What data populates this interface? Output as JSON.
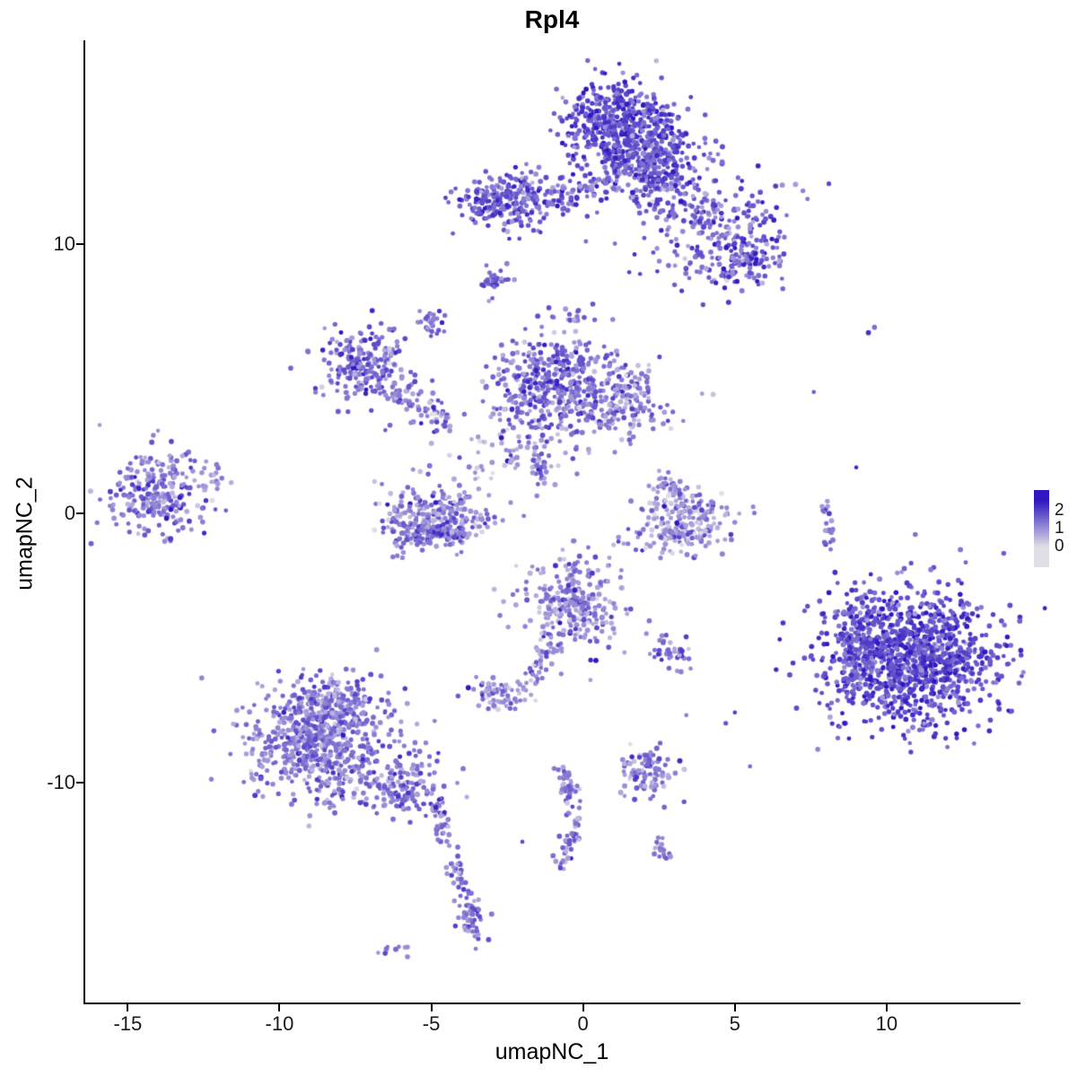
{
  "chart_data": {
    "type": "scatter",
    "title": "Rpl4",
    "xlabel": "umapNC_1",
    "ylabel": "umapNC_2",
    "x_range": [
      -16.4,
      14.35
    ],
    "y_range": [
      -18.2,
      17.55
    ],
    "x_ticks": [
      "-15",
      "-10",
      "-5",
      "0",
      "5",
      "10"
    ],
    "x_tick_values": [
      -15,
      -10,
      -5,
      0,
      5,
      10
    ],
    "y_ticks": [
      "10",
      "0",
      "-10"
    ],
    "y_tick_values": [
      10,
      0,
      -10
    ],
    "grid": false,
    "legend_position": "right",
    "legend_tick_labels": [
      "2",
      "1",
      "0"
    ],
    "legend_tick_values": [
      2,
      1,
      0
    ],
    "color_low": "#E0DFE6",
    "color_high": "#2F17C1",
    "expr_max": 2.5,
    "point_radius_px": 2.3,
    "clusters": [
      {
        "name": "top-main-upper",
        "shape": "blob",
        "n": 480,
        "cx": 1.2,
        "cy": 14.5,
        "sx": 0.85,
        "sy": 0.75,
        "e": 1.8,
        "esd": 0.45
      },
      {
        "name": "top-main-lower",
        "shape": "blob",
        "n": 330,
        "cx": 2.2,
        "cy": 13.1,
        "sx": 0.95,
        "sy": 0.8,
        "e": 1.75,
        "esd": 0.45
      },
      {
        "name": "top-right-arm",
        "shape": "blob",
        "n": 230,
        "cx": 4.2,
        "cy": 10.8,
        "sx": 1.15,
        "sy": 1.1,
        "e": 1.55,
        "esd": 0.5
      },
      {
        "name": "top-right-tip",
        "shape": "blob",
        "n": 130,
        "cx": 5.3,
        "cy": 9.4,
        "sx": 0.6,
        "sy": 0.55,
        "e": 1.6,
        "esd": 0.5
      },
      {
        "name": "top-left-cluster",
        "shape": "blob",
        "n": 230,
        "cx": -2.5,
        "cy": 11.6,
        "sx": 0.75,
        "sy": 0.55,
        "e": 1.65,
        "esd": 0.5
      },
      {
        "name": "top-bridge",
        "shape": "line",
        "n": 80,
        "x1": -1.6,
        "y1": 11.5,
        "x2": 0.9,
        "y2": 12.1,
        "jitter": 0.3,
        "e": 1.5,
        "esd": 0.5
      },
      {
        "name": "small-clump-a",
        "shape": "blob",
        "n": 26,
        "cx": -3.0,
        "cy": 8.6,
        "sx": 0.28,
        "sy": 0.22,
        "e": 1.5,
        "esd": 0.4
      },
      {
        "name": "small-clump-b",
        "shape": "blob",
        "n": 30,
        "cx": -5.0,
        "cy": 7.1,
        "sx": 0.3,
        "sy": 0.3,
        "e": 1.4,
        "esd": 0.4
      },
      {
        "name": "mid-main",
        "shape": "blob",
        "n": 460,
        "cx": -0.9,
        "cy": 4.6,
        "sx": 1.05,
        "sy": 1.0,
        "e": 1.45,
        "esd": 0.5
      },
      {
        "name": "mid-right",
        "shape": "blob",
        "n": 150,
        "cx": 1.4,
        "cy": 4.0,
        "sx": 0.8,
        "sy": 0.7,
        "e": 1.15,
        "esd": 0.5
      },
      {
        "name": "mid-stem",
        "shape": "line",
        "n": 30,
        "x1": -1.5,
        "y1": 2.5,
        "x2": -1.3,
        "y2": 0.9,
        "jitter": 0.12,
        "e": 1.3,
        "esd": 0.4
      },
      {
        "name": "left-mid",
        "shape": "blob",
        "n": 210,
        "cx": -7.3,
        "cy": 5.6,
        "sx": 0.65,
        "sy": 0.75,
        "e": 1.5,
        "esd": 0.5
      },
      {
        "name": "left-mid-arc",
        "shape": "line",
        "n": 90,
        "x1": -6.6,
        "y1": 4.9,
        "x2": -4.5,
        "y2": 3.3,
        "jitter": 0.35,
        "e": 1.3,
        "esd": 0.5
      },
      {
        "name": "center-sparse",
        "shape": "blob",
        "n": 55,
        "cx": -2.8,
        "cy": 2.2,
        "sx": 1.1,
        "sy": 0.8,
        "e": 0.8,
        "esd": 0.45
      },
      {
        "name": "mid-top-clump",
        "shape": "blob",
        "n": 14,
        "cx": -0.3,
        "cy": 7.3,
        "sx": 0.3,
        "sy": 0.3,
        "e": 1.3,
        "esd": 0.4
      },
      {
        "name": "far-left",
        "shape": "blob",
        "n": 240,
        "cx": -14.2,
        "cy": 0.7,
        "sx": 0.75,
        "sy": 0.8,
        "e": 1.35,
        "esd": 0.5
      },
      {
        "name": "far-left-edge",
        "shape": "blob",
        "n": 20,
        "cx": -12.6,
        "cy": 1.1,
        "sx": 0.5,
        "sy": 0.5,
        "e": 1.1,
        "esd": 0.4
      },
      {
        "name": "center-left-ring",
        "shape": "blob",
        "n": 270,
        "cx": -4.9,
        "cy": -0.2,
        "sx": 0.9,
        "sy": 0.6,
        "e": 1.2,
        "esd": 0.55
      },
      {
        "name": "center-left-rim",
        "shape": "line",
        "n": 70,
        "x1": -6.1,
        "y1": -0.8,
        "x2": -3.7,
        "y2": -0.7,
        "jitter": 0.2,
        "e": 1.35,
        "esd": 0.5
      },
      {
        "name": "center-right",
        "shape": "blob",
        "n": 210,
        "cx": 3.3,
        "cy": -0.5,
        "sx": 0.75,
        "sy": 0.55,
        "e": 0.95,
        "esd": 0.55
      },
      {
        "name": "center-right-arc",
        "shape": "line",
        "n": 60,
        "x1": 2.5,
        "y1": 1.2,
        "x2": 4.2,
        "y2": 0.2,
        "jitter": 0.25,
        "e": 1.1,
        "esd": 0.5
      },
      {
        "name": "center-lower",
        "shape": "blob",
        "n": 280,
        "cx": -0.4,
        "cy": -3.4,
        "sx": 0.8,
        "sy": 0.85,
        "e": 1.1,
        "esd": 0.55
      },
      {
        "name": "center-lower-tail",
        "shape": "line",
        "n": 40,
        "x1": -1.0,
        "y1": -4.6,
        "x2": -1.6,
        "y2": -6.1,
        "jitter": 0.18,
        "e": 1.1,
        "esd": 0.4
      },
      {
        "name": "small-pair",
        "shape": "blob",
        "n": 70,
        "cx": -2.6,
        "cy": -6.7,
        "sx": 0.5,
        "sy": 0.35,
        "e": 0.95,
        "esd": 0.5
      },
      {
        "name": "bottom-left-main",
        "shape": "blob",
        "n": 640,
        "cx": -8.7,
        "cy": -8.5,
        "sx": 1.25,
        "sy": 1.05,
        "e": 1.25,
        "esd": 0.45
      },
      {
        "name": "bottom-left-top",
        "shape": "blob",
        "n": 120,
        "cx": -8.3,
        "cy": -6.9,
        "sx": 0.8,
        "sy": 0.5,
        "e": 1.2,
        "esd": 0.45
      },
      {
        "name": "bottom-left-neck",
        "shape": "blob",
        "n": 150,
        "cx": -5.9,
        "cy": -10.2,
        "sx": 0.75,
        "sy": 0.55,
        "e": 1.3,
        "esd": 0.45
      },
      {
        "name": "tail-a",
        "shape": "line",
        "n": 35,
        "x1": -4.9,
        "y1": -10.8,
        "x2": -4.4,
        "y2": -12.4,
        "jitter": 0.15,
        "e": 1.3,
        "esd": 0.4
      },
      {
        "name": "tail-b",
        "shape": "line",
        "n": 35,
        "x1": -4.3,
        "y1": -12.7,
        "x2": -3.7,
        "y2": -14.6,
        "jitter": 0.13,
        "e": 1.35,
        "esd": 0.4
      },
      {
        "name": "tail-clump",
        "shape": "blob",
        "n": 45,
        "cx": -3.6,
        "cy": -15.2,
        "sx": 0.25,
        "sy": 0.5,
        "e": 1.3,
        "esd": 0.4
      },
      {
        "name": "tail-dot",
        "shape": "blob",
        "n": 10,
        "cx": -6.3,
        "cy": -16.3,
        "sx": 0.2,
        "sy": 0.15,
        "e": 1.2,
        "esd": 0.3
      },
      {
        "name": "bottom-mid-strand-a",
        "shape": "line",
        "n": 45,
        "x1": -0.7,
        "y1": -9.4,
        "x2": -0.2,
        "y2": -11.4,
        "jitter": 0.14,
        "e": 1.25,
        "esd": 0.45
      },
      {
        "name": "bottom-mid-strand-b",
        "shape": "line",
        "n": 35,
        "x1": -0.2,
        "y1": -11.5,
        "x2": -0.7,
        "y2": -13.0,
        "jitter": 0.13,
        "e": 1.25,
        "esd": 0.45
      },
      {
        "name": "bottom-small",
        "shape": "blob",
        "n": 90,
        "cx": 2.1,
        "cy": -9.5,
        "sx": 0.45,
        "sy": 0.5,
        "e": 1.2,
        "esd": 0.5
      },
      {
        "name": "bottom-tiny",
        "shape": "blob",
        "n": 18,
        "cx": 2.6,
        "cy": -12.5,
        "sx": 0.2,
        "sy": 0.3,
        "e": 1.35,
        "esd": 0.35
      },
      {
        "name": "mid-small-clump",
        "shape": "blob",
        "n": 45,
        "cx": 2.9,
        "cy": -5.2,
        "sx": 0.35,
        "sy": 0.3,
        "e": 1.2,
        "esd": 0.45
      },
      {
        "name": "right-main",
        "shape": "blob",
        "n": 1150,
        "cx": 10.8,
        "cy": -5.4,
        "sx": 1.45,
        "sy": 1.25,
        "e": 1.85,
        "esd": 0.45
      },
      {
        "name": "right-main-edge",
        "shape": "blob",
        "n": 90,
        "cx": 8.9,
        "cy": -4.3,
        "sx": 0.5,
        "sy": 0.8,
        "e": 1.7,
        "esd": 0.45
      },
      {
        "name": "right-strand",
        "shape": "line",
        "n": 22,
        "x1": 8.0,
        "y1": 0.5,
        "x2": 8.2,
        "y2": -1.3,
        "jitter": 0.1,
        "e": 1.3,
        "esd": 0.4
      },
      {
        "name": "isolated-dots",
        "shape": "dots",
        "pts": [
          [
            9.6,
            6.9
          ],
          [
            9.4,
            6.7
          ],
          [
            7.6,
            4.5
          ],
          [
            9.0,
            1.7
          ],
          [
            8.3,
            -2.2
          ],
          [
            5.0,
            -7.4
          ],
          [
            4.7,
            -7.8
          ],
          [
            5.5,
            -9.4
          ],
          [
            0.8,
            12.4
          ],
          [
            -11.9,
            1.3
          ],
          [
            3.4,
            -7.5
          ],
          [
            -2.0,
            -12.2
          ]
        ],
        "e": 1.4,
        "esd": 0.4
      }
    ]
  }
}
